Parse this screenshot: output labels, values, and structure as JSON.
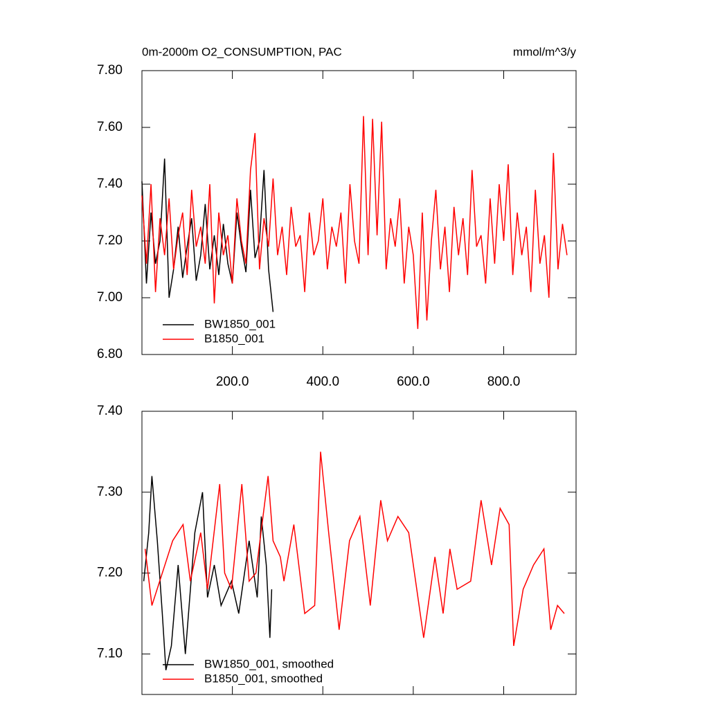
{
  "chart_data": [
    {
      "type": "line",
      "title": "0m-2000m O2_CONSUMPTION, PAC",
      "units": "mmol/m^3/y",
      "xlim": [
        0,
        960
      ],
      "ylim": [
        6.8,
        7.8
      ],
      "xticks": [
        {
          "value": 200,
          "label": "200.0"
        },
        {
          "value": 400,
          "label": "400.0"
        },
        {
          "value": 600,
          "label": "600.0"
        },
        {
          "value": 800,
          "label": "800.0"
        }
      ],
      "yticks": [
        {
          "value": 6.8,
          "label": "6.80"
        },
        {
          "value": 7.0,
          "label": "7.00"
        },
        {
          "value": 7.2,
          "label": "7.20"
        },
        {
          "value": 7.4,
          "label": "7.40"
        },
        {
          "value": 7.6,
          "label": "7.60"
        },
        {
          "value": 7.8,
          "label": "7.80"
        }
      ],
      "xtick_labels": true,
      "legend": "lower left",
      "series": [
        {
          "name": "BW1850_001",
          "color": "#000000",
          "x": [
            0,
            10,
            20,
            30,
            40,
            50,
            60,
            70,
            80,
            90,
            100,
            110,
            120,
            130,
            140,
            150,
            160,
            170,
            180,
            190,
            200,
            210,
            220,
            230,
            240,
            250,
            260,
            270,
            280,
            290
          ],
          "values": [
            7.41,
            7.05,
            7.3,
            7.12,
            7.2,
            7.49,
            7.0,
            7.1,
            7.25,
            7.07,
            7.18,
            7.28,
            7.06,
            7.15,
            7.33,
            7.1,
            7.22,
            7.08,
            7.26,
            7.12,
            7.05,
            7.3,
            7.18,
            7.09,
            7.38,
            7.14,
            7.2,
            7.45,
            7.1,
            6.95
          ]
        },
        {
          "name": "B1850_001",
          "color": "#ff0000",
          "x": [
            0,
            10,
            20,
            30,
            40,
            50,
            60,
            70,
            80,
            90,
            100,
            110,
            120,
            130,
            140,
            150,
            160,
            170,
            180,
            190,
            200,
            210,
            220,
            230,
            240,
            250,
            260,
            270,
            280,
            290,
            300,
            310,
            320,
            330,
            340,
            350,
            360,
            370,
            380,
            390,
            400,
            410,
            420,
            430,
            440,
            450,
            460,
            470,
            480,
            490,
            500,
            510,
            520,
            530,
            540,
            550,
            560,
            570,
            580,
            590,
            600,
            610,
            620,
            630,
            640,
            650,
            660,
            670,
            680,
            690,
            700,
            710,
            720,
            730,
            740,
            750,
            760,
            770,
            780,
            790,
            800,
            810,
            820,
            830,
            840,
            850,
            860,
            870,
            880,
            890,
            900,
            910,
            920,
            930,
            940
          ],
          "values": [
            7.36,
            7.12,
            7.4,
            7.02,
            7.28,
            7.15,
            7.35,
            7.1,
            7.22,
            7.3,
            7.08,
            7.38,
            7.18,
            7.25,
            7.12,
            7.4,
            6.98,
            7.3,
            7.15,
            7.22,
            7.05,
            7.35,
            7.2,
            7.12,
            7.45,
            7.58,
            7.1,
            7.28,
            7.18,
            7.42,
            7.15,
            7.25,
            7.08,
            7.32,
            7.18,
            7.22,
            7.02,
            7.3,
            7.15,
            7.2,
            7.35,
            7.1,
            7.25,
            7.18,
            7.3,
            7.05,
            7.4,
            7.2,
            7.12,
            7.64,
            7.15,
            7.63,
            7.22,
            7.62,
            7.1,
            7.28,
            7.18,
            7.35,
            7.05,
            7.25,
            7.15,
            6.89,
            7.3,
            6.92,
            7.2,
            7.38,
            7.1,
            7.25,
            7.02,
            7.32,
            7.15,
            7.28,
            7.08,
            7.45,
            7.18,
            7.22,
            7.05,
            7.35,
            7.12,
            7.4,
            7.2,
            7.47,
            7.08,
            7.3,
            7.15,
            7.25,
            7.02,
            7.38,
            7.12,
            7.22,
            7.0,
            7.51,
            7.1,
            7.26,
            7.15
          ]
        }
      ]
    },
    {
      "type": "line",
      "xlim": [
        0,
        960
      ],
      "ylim": [
        7.05,
        7.4
      ],
      "xticks": [
        200,
        400,
        600,
        800
      ],
      "yticks": [
        {
          "value": 7.1,
          "label": "7.10"
        },
        {
          "value": 7.2,
          "label": "7.20"
        },
        {
          "value": 7.3,
          "label": "7.30"
        },
        {
          "value": 7.4,
          "label": "7.40"
        }
      ],
      "xtick_labels": false,
      "legend": "lower left",
      "series": [
        {
          "name": "BW1850_001, smoothed",
          "color": "#000000",
          "x": [
            4,
            15,
            22,
            34,
            45,
            53,
            65,
            80,
            96,
            117,
            134,
            145,
            160,
            175,
            198,
            214,
            237,
            255,
            264,
            275,
            283,
            287
          ],
          "values": [
            7.19,
            7.25,
            7.32,
            7.24,
            7.15,
            7.08,
            7.11,
            7.21,
            7.1,
            7.25,
            7.3,
            7.17,
            7.21,
            7.16,
            7.19,
            7.15,
            7.24,
            7.17,
            7.27,
            7.21,
            7.12,
            7.18
          ]
        },
        {
          "name": "B1850_001, smoothed",
          "color": "#ff0000",
          "x": [
            7,
            22,
            45,
            68,
            91,
            107,
            130,
            145,
            172,
            183,
            198,
            221,
            237,
            252,
            279,
            290,
            306,
            314,
            336,
            360,
            382,
            395,
            413,
            436,
            459,
            482,
            505,
            528,
            543,
            566,
            590,
            623,
            648,
            666,
            681,
            697,
            727,
            750,
            773,
            792,
            812,
            822,
            843,
            866,
            889,
            904,
            919,
            934
          ],
          "values": [
            7.23,
            7.16,
            7.2,
            7.24,
            7.26,
            7.19,
            7.25,
            7.18,
            7.31,
            7.2,
            7.18,
            7.31,
            7.19,
            7.2,
            7.32,
            7.24,
            7.22,
            7.19,
            7.26,
            7.15,
            7.16,
            7.35,
            7.25,
            7.13,
            7.24,
            7.27,
            7.16,
            7.29,
            7.24,
            7.27,
            7.25,
            7.12,
            7.22,
            7.15,
            7.23,
            7.18,
            7.19,
            7.29,
            7.21,
            7.28,
            7.26,
            7.11,
            7.18,
            7.21,
            7.23,
            7.13,
            7.16,
            7.15
          ]
        }
      ]
    }
  ]
}
